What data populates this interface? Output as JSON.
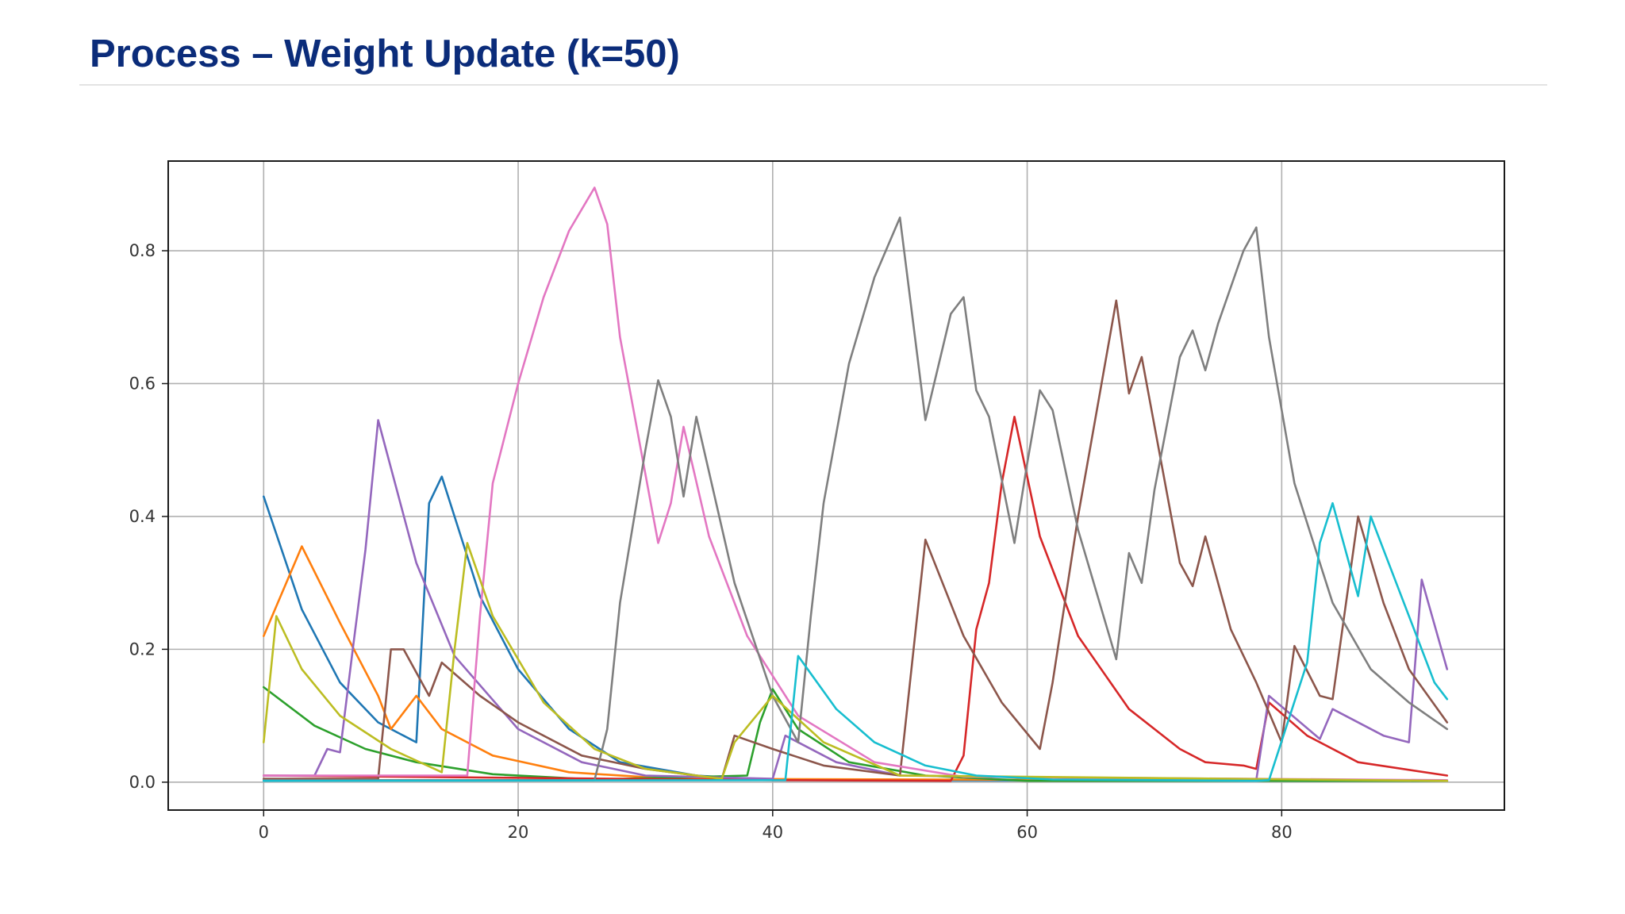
{
  "slide": {
    "title": "Process – Weight Update (k=50)"
  },
  "chart_data": {
    "type": "line",
    "title": "",
    "xlabel": "",
    "ylabel": "",
    "xlim": [
      -7.5,
      97.5
    ],
    "ylim": [
      -0.042,
      0.935
    ],
    "grid": true,
    "legend": "none",
    "xticks": [
      0,
      20,
      40,
      60,
      80
    ],
    "xtick_labels": [
      "0",
      "20",
      "40",
      "60",
      "80"
    ],
    "yticks": [
      0.0,
      0.2,
      0.4,
      0.6,
      0.8
    ],
    "ytick_labels": [
      "0.0",
      "0.2",
      "0.4",
      "0.6",
      "0.8"
    ],
    "series": [
      {
        "color": "#1f77b4",
        "points": [
          [
            0,
            0.43
          ],
          [
            3,
            0.26
          ],
          [
            6,
            0.15
          ],
          [
            9,
            0.09
          ],
          [
            12,
            0.06
          ],
          [
            13,
            0.42
          ],
          [
            14,
            0.46
          ],
          [
            17,
            0.28
          ],
          [
            20,
            0.17
          ],
          [
            24,
            0.08
          ],
          [
            28,
            0.03
          ],
          [
            34,
            0.01
          ],
          [
            40,
            0.003
          ],
          [
            93,
            0.002
          ]
        ]
      },
      {
        "color": "#ff7f0e",
        "points": [
          [
            0,
            0.22
          ],
          [
            3,
            0.355
          ],
          [
            6,
            0.24
          ],
          [
            9,
            0.13
          ],
          [
            10,
            0.08
          ],
          [
            11,
            0.105
          ],
          [
            12,
            0.13
          ],
          [
            14,
            0.08
          ],
          [
            18,
            0.04
          ],
          [
            24,
            0.015
          ],
          [
            32,
            0.005
          ],
          [
            93,
            0.002
          ]
        ]
      },
      {
        "color": "#2ca02c",
        "points": [
          [
            0,
            0.143
          ],
          [
            4,
            0.085
          ],
          [
            8,
            0.05
          ],
          [
            12,
            0.03
          ],
          [
            18,
            0.012
          ],
          [
            26,
            0.004
          ],
          [
            38,
            0.01
          ],
          [
            39,
            0.09
          ],
          [
            40,
            0.14
          ],
          [
            42,
            0.08
          ],
          [
            46,
            0.03
          ],
          [
            52,
            0.01
          ],
          [
            60,
            0.002
          ],
          [
            93,
            0.002
          ]
        ]
      },
      {
        "color": "#d62728",
        "points": [
          [
            0,
            0.01
          ],
          [
            40,
            0.003
          ],
          [
            54,
            0.002
          ],
          [
            55,
            0.04
          ],
          [
            56,
            0.23
          ],
          [
            57,
            0.3
          ],
          [
            58,
            0.45
          ],
          [
            59,
            0.55
          ],
          [
            61,
            0.37
          ],
          [
            64,
            0.22
          ],
          [
            68,
            0.11
          ],
          [
            72,
            0.05
          ],
          [
            74,
            0.03
          ],
          [
            77,
            0.025
          ],
          [
            78,
            0.02
          ],
          [
            79,
            0.12
          ],
          [
            82,
            0.07
          ],
          [
            86,
            0.03
          ],
          [
            93,
            0.01
          ]
        ]
      },
      {
        "color": "#9467bd",
        "points": [
          [
            0,
            0.01
          ],
          [
            4,
            0.01
          ],
          [
            5,
            0.05
          ],
          [
            6,
            0.045
          ],
          [
            7,
            0.2
          ],
          [
            8,
            0.35
          ],
          [
            9,
            0.545
          ],
          [
            12,
            0.33
          ],
          [
            15,
            0.19
          ],
          [
            20,
            0.08
          ],
          [
            25,
            0.03
          ],
          [
            30,
            0.01
          ],
          [
            40,
            0.005
          ],
          [
            41,
            0.07
          ],
          [
            45,
            0.03
          ],
          [
            50,
            0.01
          ],
          [
            78,
            0.003
          ],
          [
            79,
            0.13
          ],
          [
            83,
            0.065
          ],
          [
            84,
            0.11
          ],
          [
            88,
            0.07
          ],
          [
            90,
            0.06
          ],
          [
            91,
            0.305
          ],
          [
            93,
            0.17
          ]
        ]
      },
      {
        "color": "#8c564b",
        "points": [
          [
            0,
            0.005
          ],
          [
            9,
            0.005
          ],
          [
            10,
            0.2
          ],
          [
            11,
            0.2
          ],
          [
            13,
            0.13
          ],
          [
            14,
            0.18
          ],
          [
            17,
            0.13
          ],
          [
            20,
            0.09
          ],
          [
            25,
            0.04
          ],
          [
            30,
            0.02
          ],
          [
            36,
            0.005
          ],
          [
            37,
            0.07
          ],
          [
            40,
            0.05
          ],
          [
            44,
            0.025
          ],
          [
            50,
            0.01
          ],
          [
            52,
            0.365
          ],
          [
            55,
            0.22
          ],
          [
            58,
            0.12
          ],
          [
            61,
            0.05
          ],
          [
            62,
            0.15
          ],
          [
            64,
            0.4
          ],
          [
            67,
            0.725
          ],
          [
            68,
            0.585
          ],
          [
            69,
            0.64
          ],
          [
            72,
            0.33
          ],
          [
            73,
            0.295
          ],
          [
            74,
            0.37
          ],
          [
            76,
            0.23
          ],
          [
            78,
            0.15
          ],
          [
            80,
            0.06
          ],
          [
            81,
            0.205
          ],
          [
            83,
            0.13
          ],
          [
            84,
            0.125
          ],
          [
            86,
            0.4
          ],
          [
            88,
            0.27
          ],
          [
            90,
            0.17
          ],
          [
            93,
            0.09
          ]
        ]
      },
      {
        "color": "#e377c2",
        "points": [
          [
            0,
            0.01
          ],
          [
            16,
            0.01
          ],
          [
            17,
            0.25
          ],
          [
            18,
            0.45
          ],
          [
            20,
            0.6
          ],
          [
            22,
            0.73
          ],
          [
            24,
            0.83
          ],
          [
            26,
            0.895
          ],
          [
            27,
            0.84
          ],
          [
            28,
            0.67
          ],
          [
            31,
            0.36
          ],
          [
            32,
            0.42
          ],
          [
            33,
            0.535
          ],
          [
            35,
            0.37
          ],
          [
            38,
            0.22
          ],
          [
            42,
            0.1
          ],
          [
            48,
            0.03
          ],
          [
            55,
            0.008
          ],
          [
            93,
            0.003
          ]
        ]
      },
      {
        "color": "#7f7f7f",
        "points": [
          [
            0,
            0.003
          ],
          [
            26,
            0.003
          ],
          [
            27,
            0.08
          ],
          [
            28,
            0.27
          ],
          [
            30,
            0.5
          ],
          [
            31,
            0.605
          ],
          [
            32,
            0.55
          ],
          [
            33,
            0.43
          ],
          [
            34,
            0.55
          ],
          [
            37,
            0.3
          ],
          [
            40,
            0.13
          ],
          [
            42,
            0.06
          ],
          [
            43,
            0.25
          ],
          [
            44,
            0.42
          ],
          [
            46,
            0.63
          ],
          [
            48,
            0.76
          ],
          [
            50,
            0.85
          ],
          [
            52,
            0.545
          ],
          [
            54,
            0.705
          ],
          [
            55,
            0.73
          ],
          [
            56,
            0.59
          ],
          [
            57,
            0.55
          ],
          [
            59,
            0.36
          ],
          [
            60,
            0.48
          ],
          [
            61,
            0.59
          ],
          [
            62,
            0.56
          ],
          [
            64,
            0.38
          ],
          [
            67,
            0.185
          ],
          [
            68,
            0.345
          ],
          [
            69,
            0.3
          ],
          [
            70,
            0.44
          ],
          [
            72,
            0.64
          ],
          [
            73,
            0.68
          ],
          [
            74,
            0.62
          ],
          [
            75,
            0.69
          ],
          [
            77,
            0.8
          ],
          [
            78,
            0.835
          ],
          [
            79,
            0.67
          ],
          [
            81,
            0.45
          ],
          [
            84,
            0.27
          ],
          [
            87,
            0.17
          ],
          [
            90,
            0.12
          ],
          [
            93,
            0.08
          ]
        ]
      },
      {
        "color": "#bcbd22",
        "points": [
          [
            0,
            0.06
          ],
          [
            1,
            0.25
          ],
          [
            3,
            0.17
          ],
          [
            6,
            0.1
          ],
          [
            10,
            0.05
          ],
          [
            14,
            0.015
          ],
          [
            15,
            0.2
          ],
          [
            16,
            0.36
          ],
          [
            18,
            0.25
          ],
          [
            22,
            0.12
          ],
          [
            26,
            0.05
          ],
          [
            30,
            0.02
          ],
          [
            36,
            0.005
          ],
          [
            37,
            0.06
          ],
          [
            40,
            0.13
          ],
          [
            44,
            0.06
          ],
          [
            50,
            0.01
          ],
          [
            93,
            0.002
          ]
        ]
      },
      {
        "color": "#17becf",
        "points": [
          [
            0,
            0.002
          ],
          [
            41,
            0.003
          ],
          [
            42,
            0.19
          ],
          [
            45,
            0.11
          ],
          [
            48,
            0.06
          ],
          [
            52,
            0.025
          ],
          [
            56,
            0.01
          ],
          [
            62,
            0.004
          ],
          [
            78,
            0.002
          ],
          [
            79,
            0.003
          ],
          [
            82,
            0.18
          ],
          [
            83,
            0.36
          ],
          [
            84,
            0.42
          ],
          [
            86,
            0.28
          ],
          [
            87,
            0.4
          ],
          [
            89,
            0.3
          ],
          [
            91,
            0.2
          ],
          [
            92,
            0.15
          ],
          [
            93,
            0.125
          ]
        ]
      }
    ]
  }
}
